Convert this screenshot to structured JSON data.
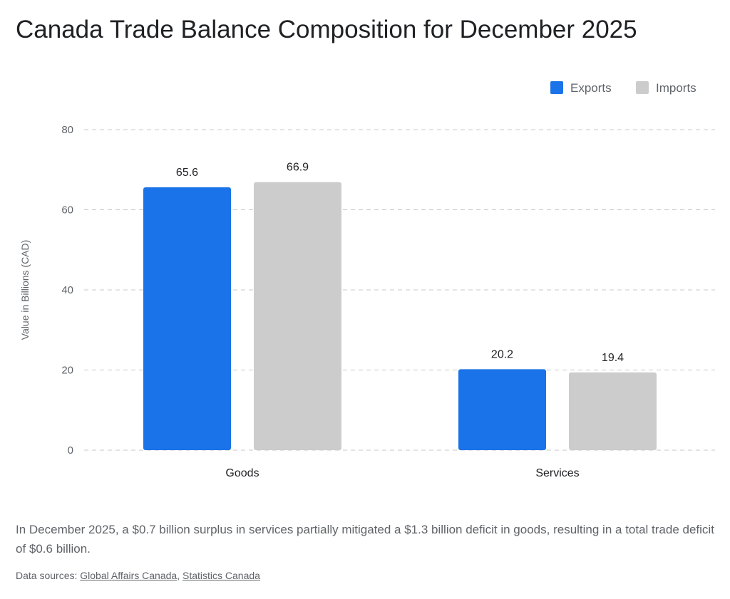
{
  "chart_data": {
    "type": "bar",
    "title": "Canada Trade Balance Composition for December 2025",
    "ylabel": "Value in Billions (CAD)",
    "xlabel": "",
    "categories": [
      "Goods",
      "Services"
    ],
    "series": [
      {
        "name": "Exports",
        "values": [
          65.6,
          20.2
        ],
        "color": "#1a73e8"
      },
      {
        "name": "Imports",
        "values": [
          66.9,
          19.4
        ],
        "color": "#cccccc"
      }
    ],
    "ylim": [
      0,
      80
    ],
    "yticks": [
      0,
      20,
      40,
      60,
      80
    ],
    "grid": true,
    "legend_position": "top-right",
    "data_labels": true
  },
  "caption": "In December 2025, a $0.7 billion surplus in services partially mitigated a $1.3 billion deficit in goods, resulting in a total trade deficit of $0.6 billion.",
  "sources": {
    "prefix": "Data sources: ",
    "links": [
      "Global Affairs Canada",
      "Statistics Canada"
    ],
    "separator": ", "
  }
}
